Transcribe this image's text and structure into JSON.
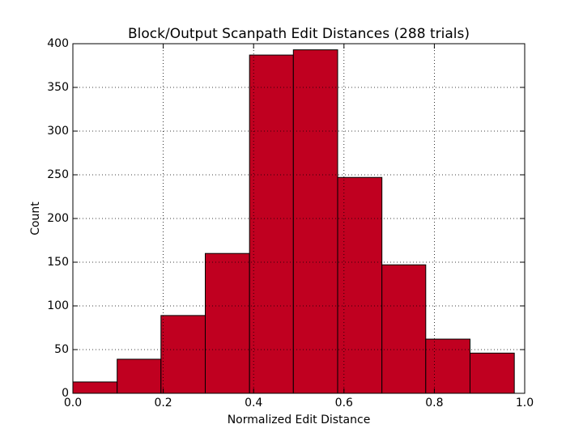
{
  "chart_data": {
    "type": "histogram",
    "title": "Block/Output Scanpath Edit Distances (288 trials)",
    "x_label": "Normalized Edit Distance",
    "y_label": "Count",
    "bins": [
      0,
      0.098,
      0.195,
      0.293,
      0.391,
      0.488,
      0.586,
      0.684,
      0.781,
      0.879,
      0.977
    ],
    "values": [
      13,
      39,
      89,
      160,
      387,
      393,
      247,
      147,
      62,
      46
    ],
    "color": "#c00020",
    "xlim": [
      0,
      1.0
    ],
    "ylim": [
      0,
      400
    ],
    "xticks": [
      {
        "value": 0,
        "label": "0.0"
      },
      0.2,
      0.4,
      0.6,
      0.8,
      {
        "value": 1.0,
        "label": "1.0"
      }
    ],
    "yticks": [
      0,
      50,
      100,
      150,
      200,
      250,
      300,
      350,
      400
    ],
    "grid": true
  }
}
